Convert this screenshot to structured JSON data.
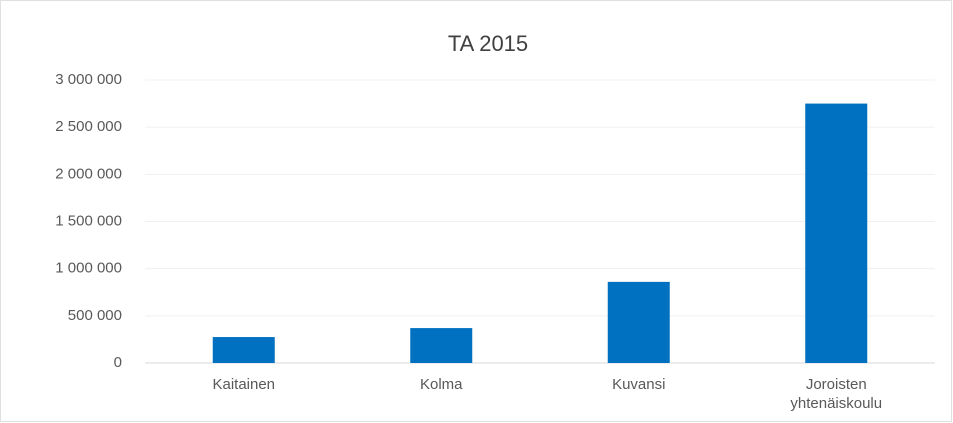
{
  "chart_data": {
    "type": "bar",
    "title": "TA 2015",
    "categories": [
      "Kaitainen",
      "Kolma",
      "Kuvansi",
      "Joroisten yhtenäiskoulu"
    ],
    "values": [
      275000,
      370000,
      860000,
      2750000
    ],
    "color": "#0070c0",
    "ylim": [
      0,
      3000000
    ],
    "yticks": [
      0,
      {
        "value": 500000,
        "label": "500 000"
      },
      {
        "value": 1000000,
        "label": "1 000 000"
      },
      {
        "value": 1500000,
        "label": "1 500 000"
      },
      {
        "value": 2000000,
        "label": "2 000 000"
      },
      {
        "value": 2500000,
        "label": "2 500 000"
      },
      {
        "value": 3000000,
        "label": "3 000 000"
      }
    ],
    "grid": true
  }
}
